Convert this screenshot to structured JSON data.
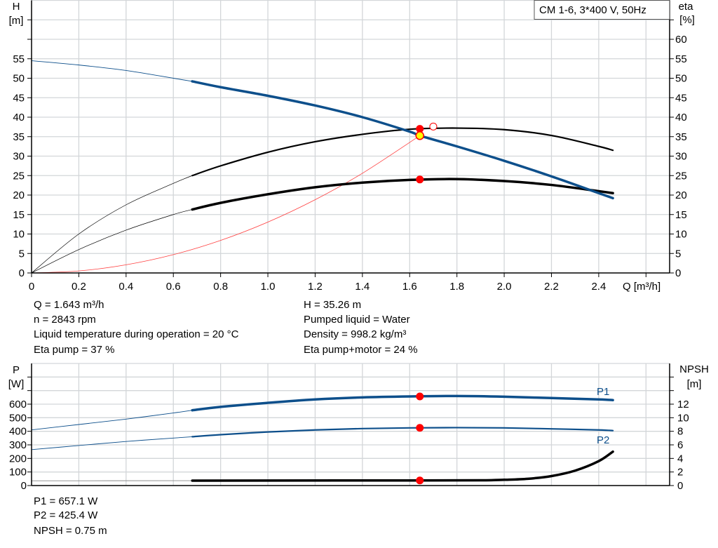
{
  "legend_box": "CM 1-6, 3*400 V, 50Hz",
  "info_top": {
    "left": [
      "Q = 1.643 m³/h",
      "n = 2843 rpm",
      "Liquid temperature during operation = 20 °C",
      "Eta pump = 37 %"
    ],
    "right": [
      "H = 35.26 m",
      "Pumped liquid = Water",
      "Density = 998.2 kg/m³",
      "Eta pump+motor = 24 %"
    ]
  },
  "info_bottom": [
    "P1 = 657.1 W",
    "P2 = 425.4 W",
    "NPSH = 0.75 m"
  ],
  "colors": {
    "head": "#0d4f8b",
    "eta": "#000000",
    "system": "#ff4040",
    "power": "#0d4f8b",
    "npsh": "#000000",
    "dot": "#ff0000",
    "dut_point": "#ffff00",
    "grid": "#d3d6d9"
  },
  "chart_data": [
    {
      "type": "line",
      "xlabel": "Q [m³/h]",
      "ylabel": "H\n[m]",
      "ylabel_lines": [
        "H",
        "[m]"
      ],
      "y2label_lines": [
        "eta",
        "[%]"
      ],
      "xlim": [
        0,
        2.7
      ],
      "ylim": [
        0,
        70
      ],
      "y2lim": [
        0,
        70
      ],
      "grid": true,
      "x_ticks": [
        "0",
        "0.2",
        "0.4",
        "0.6",
        "0.8",
        "1.0",
        "1.2",
        "1.4",
        "1.6",
        "1.8",
        "2.0",
        "2.2",
        "2.4"
      ],
      "y_ticks": [
        "0",
        "5",
        "10",
        "15",
        "20",
        "25",
        "30",
        "35",
        "40",
        "45",
        "50",
        "55"
      ],
      "y2_ticks": [
        "0",
        "5",
        "10",
        "15",
        "20",
        "25",
        "30",
        "35",
        "40",
        "45",
        "50",
        "55",
        "60"
      ],
      "series": [
        {
          "id": "head",
          "axis": "left",
          "thick_from": 0.68,
          "x": [
            0,
            0.2,
            0.4,
            0.6,
            0.68,
            0.8,
            1.0,
            1.2,
            1.4,
            1.6,
            1.643,
            1.8,
            2.0,
            2.2,
            2.4,
            2.46
          ],
          "y": [
            54.5,
            53.4,
            52,
            50,
            49.2,
            47.7,
            45.5,
            43,
            40,
            36.3,
            35.26,
            32.5,
            28.8,
            24.8,
            20.5,
            19.2
          ]
        },
        {
          "id": "eta_pump",
          "axis": "right",
          "thick_from": 0.68,
          "x": [
            0,
            0.2,
            0.4,
            0.6,
            0.68,
            0.8,
            1.0,
            1.2,
            1.4,
            1.6,
            1.8,
            2.0,
            2.2,
            2.4,
            2.46
          ],
          "y": [
            0,
            10,
            17.5,
            23,
            25,
            27.5,
            31,
            33.7,
            35.6,
            36.9,
            37.2,
            36.8,
            35.3,
            32.5,
            31.5
          ]
        },
        {
          "id": "eta_total",
          "axis": "right",
          "thick_from": 0.68,
          "x": [
            0,
            0.2,
            0.4,
            0.6,
            0.68,
            0.8,
            1.0,
            1.2,
            1.4,
            1.6,
            1.8,
            2.0,
            2.2,
            2.4,
            2.46
          ],
          "y": [
            0,
            6,
            11,
            15,
            16.3,
            18,
            20.2,
            22,
            23.2,
            23.9,
            24.1,
            23.6,
            22.6,
            21,
            20.5
          ]
        },
        {
          "id": "system",
          "axis": "left",
          "x": [
            0,
            0.2,
            0.4,
            0.6,
            0.8,
            1.0,
            1.2,
            1.4,
            1.643
          ],
          "y": [
            0,
            0.52,
            2.09,
            4.7,
            8.36,
            13.06,
            18.8,
            25.6,
            35.26
          ]
        }
      ],
      "points": [
        {
          "id": "eta-pump-point",
          "x": 1.643,
          "y": 37,
          "axis": "right",
          "kind": "red"
        },
        {
          "id": "eta-total-point",
          "x": 1.643,
          "y": 24,
          "axis": "right",
          "kind": "red"
        },
        {
          "id": "duty-point",
          "x": 1.643,
          "y": 35.26,
          "axis": "left",
          "kind": "yellow"
        },
        {
          "id": "requested-point",
          "x": 1.7,
          "y": 37.6,
          "axis": "left",
          "kind": "open"
        }
      ]
    },
    {
      "type": "line",
      "ylabel_lines": [
        "P",
        "[W]"
      ],
      "y2label_lines": [
        "NPSH",
        "[m]"
      ],
      "xlim": [
        0,
        2.7
      ],
      "ylim": [
        0,
        900
      ],
      "y2lim": [
        0,
        18
      ],
      "grid": true,
      "y_ticks": [
        "0",
        "100",
        "200",
        "300",
        "400",
        "500",
        "600"
      ],
      "y2_ticks": [
        "0",
        "2",
        "4",
        "6",
        "8",
        "10",
        "12"
      ],
      "series": [
        {
          "id": "p1",
          "name": "P1",
          "axis": "left",
          "thick_from": 0.68,
          "x": [
            0,
            0.2,
            0.4,
            0.6,
            0.68,
            0.8,
            1.0,
            1.2,
            1.4,
            1.6,
            1.8,
            2.0,
            2.2,
            2.4,
            2.46
          ],
          "y": [
            410,
            450,
            490,
            535,
            555,
            580,
            610,
            635,
            650,
            657,
            660,
            655,
            645,
            635,
            630
          ]
        },
        {
          "id": "p2",
          "name": "P2",
          "axis": "left",
          "thick_from": 0.68,
          "x": [
            0,
            0.2,
            0.4,
            0.6,
            0.68,
            0.8,
            1.0,
            1.2,
            1.4,
            1.6,
            1.8,
            2.0,
            2.2,
            2.4,
            2.46
          ],
          "y": [
            265,
            295,
            325,
            350,
            360,
            375,
            395,
            410,
            420,
            425,
            427,
            425,
            418,
            410,
            405
          ]
        },
        {
          "id": "npsh",
          "axis": "right",
          "thick_from": 0.68,
          "x": [
            0,
            0.68,
            1.0,
            1.6,
            1.9,
            2.0,
            2.1,
            2.2,
            2.3,
            2.4,
            2.46
          ],
          "y": [
            0.7,
            0.72,
            0.74,
            0.75,
            0.77,
            0.85,
            1.0,
            1.4,
            2.2,
            3.6,
            5.0
          ]
        }
      ],
      "points": [
        {
          "id": "p1-point",
          "x": 1.643,
          "y": 657.1,
          "axis": "left",
          "kind": "red"
        },
        {
          "id": "p2-point",
          "x": 1.643,
          "y": 425.4,
          "axis": "left",
          "kind": "red"
        },
        {
          "id": "npsh-point",
          "x": 1.643,
          "y": 0.75,
          "axis": "right",
          "kind": "red"
        }
      ]
    }
  ]
}
